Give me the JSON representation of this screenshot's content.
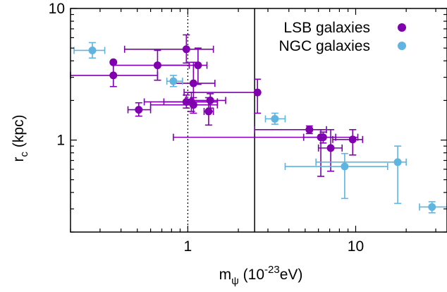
{
  "chart_data": {
    "type": "scatter",
    "x_scale": "log",
    "y_scale": "log",
    "xlim": [
      0.2,
      35
    ],
    "ylim": [
      0.2,
      10
    ],
    "xlabel": "m_ψ (10^-23 eV)",
    "xlabel_parts": {
      "main": "m",
      "sub": "ψ",
      "rest": " (10",
      "sup": "-23",
      "tail": "eV)"
    },
    "ylabel": "r_c (kpc)",
    "ylabel_parts": {
      "main": "r",
      "sub": "c",
      "rest": " (kpc)"
    },
    "x_tick_labels": [
      {
        "value": 1,
        "label": "1"
      },
      {
        "value": 10,
        "label": "10"
      }
    ],
    "y_tick_labels": [
      {
        "value": 1,
        "label": "1"
      },
      {
        "value": 10,
        "label": "10"
      }
    ],
    "grid": false,
    "legend_position": "top-right",
    "reference_lines": [
      {
        "x": 1,
        "style": "dotted"
      },
      {
        "x": 2.5,
        "style": "solid"
      }
    ],
    "series": [
      {
        "name": "LSB galaxies",
        "color": "#8000b0",
        "points": [
          {
            "x": 0.36,
            "y": 3.9,
            "xerr": [
              0.36,
              0.36
            ],
            "yerr": [
              3.9,
              3.9
            ]
          },
          {
            "x": 0.36,
            "y": 3.1,
            "xerr": [
              0.2,
              0.66
            ],
            "yerr": [
              2.55,
              3.85
            ]
          },
          {
            "x": 0.51,
            "y": 1.7,
            "xerr": [
              0.44,
              0.6
            ],
            "yerr": [
              1.52,
              1.92
            ]
          },
          {
            "x": 0.66,
            "y": 3.7,
            "xerr": [
              0.36,
              1.02
            ],
            "yerr": [
              2.85,
              4.8
            ]
          },
          {
            "x": 0.98,
            "y": 4.9,
            "xerr": [
              0.42,
              1.42
            ],
            "yerr": [
              3.85,
              6.3
            ]
          },
          {
            "x": 0.98,
            "y": 1.95,
            "xerr": [
              0.55,
              1.5
            ],
            "yerr": [
              1.75,
              2.2
            ]
          },
          {
            "x": 1.05,
            "y": 1.95,
            "xerr": [
              0.72,
              1.5
            ],
            "yerr": [
              1.65,
              2.3
            ]
          },
          {
            "x": 1.08,
            "y": 1.85,
            "xerr": [
              0.6,
              1.5
            ],
            "yerr": [
              1.6,
              2.1
            ]
          },
          {
            "x": 1.08,
            "y": 2.7,
            "xerr": [
              0.82,
              1.45
            ],
            "yerr": [
              1.9,
              3.9
            ]
          },
          {
            "x": 1.15,
            "y": 3.7,
            "xerr": [
              0.65,
              1.3
            ],
            "yerr": [
              2.65,
              5.0
            ]
          },
          {
            "x": 1.36,
            "y": 2.0,
            "xerr": [
              0.97,
              1.68
            ],
            "yerr": [
              1.75,
              2.25
            ]
          },
          {
            "x": 1.33,
            "y": 1.65,
            "xerr": [
              1.25,
              1.42
            ],
            "yerr": [
              1.3,
              2.1
            ]
          },
          {
            "x": 2.6,
            "y": 2.3,
            "xerr": [
              0.95,
              2.65
            ],
            "yerr": [
              1.6,
              2.9
            ]
          },
          {
            "x": 5.3,
            "y": 1.2,
            "xerr": [
              2.5,
              6.7
            ],
            "yerr": [
              1.12,
              1.28
            ]
          },
          {
            "x": 6.4,
            "y": 1.05,
            "xerr": [
              0.82,
              10.3
            ],
            "yerr": [
              0.95,
              1.15
            ]
          },
          {
            "x": 6.2,
            "y": 1.05,
            "xerr": [
              4.9,
              7.6
            ],
            "yerr": [
              0.53,
              1.2
            ]
          },
          {
            "x": 7.1,
            "y": 0.87,
            "xerr": [
              6.0,
              8.3
            ],
            "yerr": [
              0.58,
              1.2
            ]
          },
          {
            "x": 9.6,
            "y": 1.01,
            "xerr": [
              7.3,
              11.0
            ],
            "yerr": [
              0.77,
              1.2
            ]
          }
        ]
      },
      {
        "name": "NGC galaxies",
        "color": "#5fb4e0",
        "points": [
          {
            "x": 0.27,
            "y": 4.8,
            "xerr": [
              0.21,
              0.32
            ],
            "yerr": [
              4.2,
              5.5
            ]
          },
          {
            "x": 0.82,
            "y": 2.8,
            "xerr": [
              0.75,
              0.93
            ],
            "yerr": [
              2.55,
              3.1
            ]
          },
          {
            "x": 3.3,
            "y": 1.45,
            "xerr": [
              2.9,
              3.8
            ],
            "yerr": [
              1.32,
              1.6
            ]
          },
          {
            "x": 8.6,
            "y": 0.63,
            "xerr": [
              3.8,
              15.5
            ],
            "yerr": [
              0.36,
              0.79
            ]
          },
          {
            "x": 17.8,
            "y": 0.68,
            "xerr": [
              5.8,
              20.0
            ],
            "yerr": [
              0.33,
              0.9
            ]
          },
          {
            "x": 28.5,
            "y": 0.31,
            "xerr": [
              24.0,
              35.0
            ],
            "yerr": [
              0.28,
              0.34
            ]
          }
        ]
      }
    ]
  }
}
